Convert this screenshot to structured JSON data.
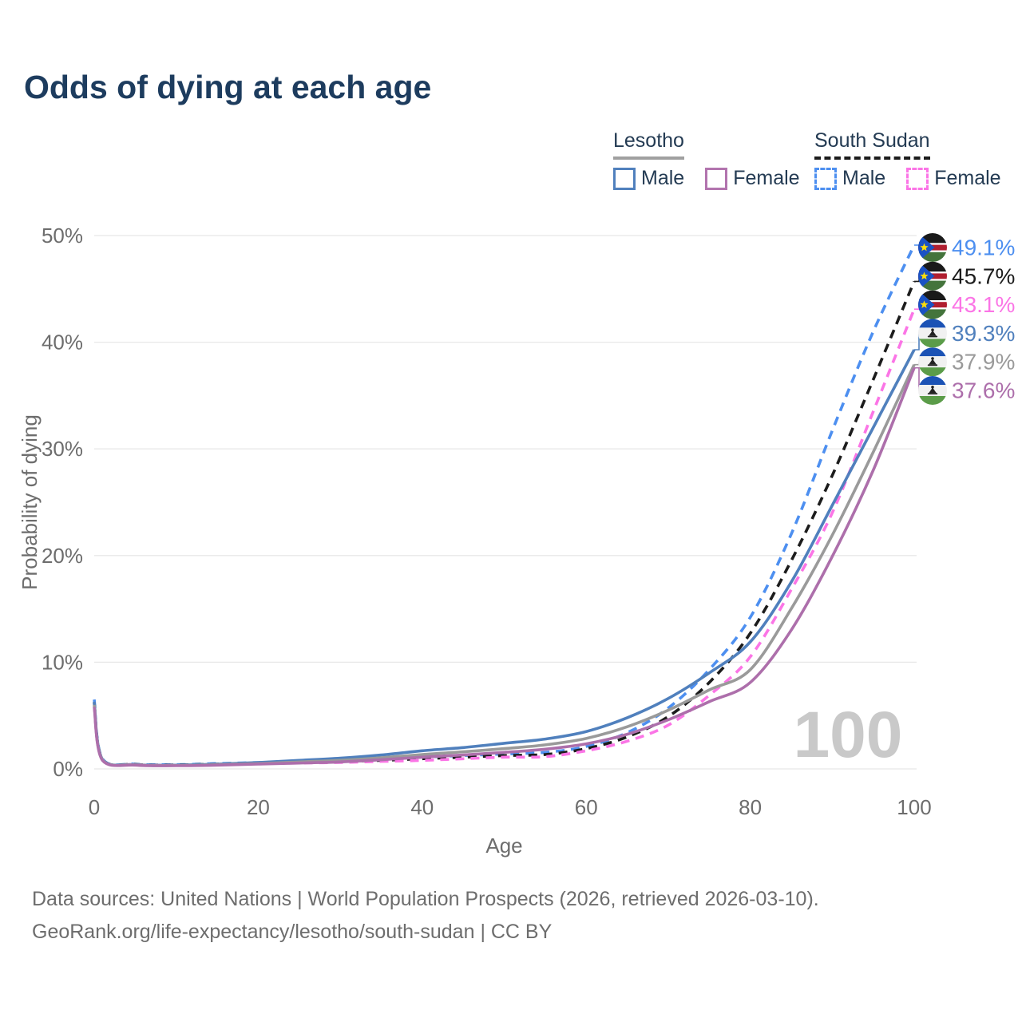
{
  "title": "Odds of dying at each age",
  "colors": {
    "title_text": "#1d3c5e",
    "legend_text": "#243b53",
    "axis_text": "#6d6d6d",
    "grid": "#e8e8e8",
    "watermark": "#c9c9c9",
    "footer_text": "#6d6d6d"
  },
  "legend": {
    "groups": [
      {
        "name": "Lesotho",
        "line_style": "solid",
        "underline_color": "#a0a0a0",
        "items": [
          {
            "label": "Male",
            "color": "#5080bd"
          },
          {
            "label": "Female",
            "color": "#b274ae"
          }
        ]
      },
      {
        "name": "South Sudan",
        "line_style": "dashed",
        "underline_color": "#1c1c1c",
        "items": [
          {
            "label": "Male",
            "color": "#4d8ff0"
          },
          {
            "label": "Female",
            "color": "#fb75e6"
          }
        ]
      }
    ]
  },
  "chart_data": {
    "type": "line",
    "title": "Odds of dying at each age",
    "xlabel": "Age",
    "ylabel": "Probability of dying",
    "xlim": [
      0,
      100
    ],
    "ylim": [
      0,
      50
    ],
    "xticks": [
      0,
      20,
      40,
      60,
      80,
      100
    ],
    "yticks": [
      {
        "v": 0,
        "label": "0%"
      },
      {
        "v": 10,
        "label": "10%"
      },
      {
        "v": 20,
        "label": "20%"
      },
      {
        "v": 30,
        "label": "30%"
      },
      {
        "v": 40,
        "label": "40%"
      },
      {
        "v": 50,
        "label": "50%"
      }
    ],
    "grid": "horizontal",
    "legend_position": "top-right",
    "watermark": "100",
    "x": [
      0,
      1,
      5,
      10,
      15,
      20,
      25,
      30,
      35,
      40,
      45,
      50,
      55,
      60,
      65,
      70,
      75,
      80,
      85,
      90,
      95,
      100
    ],
    "series": [
      {
        "name": "South Sudan Male",
        "country": "South Sudan",
        "sex": "Male",
        "flag": "south-sudan",
        "color": "#4d8ff0",
        "dash": true,
        "end_label": "49.1%",
        "values": [
          6.5,
          0.95,
          0.45,
          0.4,
          0.5,
          0.6,
          0.7,
          0.8,
          0.95,
          1.1,
          1.25,
          1.4,
          1.55,
          2.1,
          3.4,
          5.7,
          9.3,
          14.2,
          22.0,
          31.7,
          41.0,
          49.1
        ]
      },
      {
        "name": "South Sudan Both sexes",
        "country": "South Sudan",
        "sex": "Both",
        "flag": "south-sudan",
        "color": "#1c1c1c",
        "dash": true,
        "end_label": "45.7%",
        "values": [
          6.2,
          0.9,
          0.42,
          0.37,
          0.45,
          0.55,
          0.62,
          0.7,
          0.8,
          0.95,
          1.1,
          1.25,
          1.35,
          1.9,
          3.0,
          4.9,
          8.1,
          12.7,
          19.5,
          27.5,
          36.5,
          45.7
        ]
      },
      {
        "name": "South Sudan Female",
        "country": "South Sudan",
        "sex": "Female",
        "flag": "south-sudan",
        "color": "#fb75e6",
        "dash": true,
        "end_label": "43.1%",
        "values": [
          5.9,
          0.85,
          0.4,
          0.35,
          0.4,
          0.5,
          0.55,
          0.6,
          0.7,
          0.8,
          0.95,
          1.1,
          1.15,
          1.7,
          2.6,
          4.1,
          6.9,
          10.5,
          16.8,
          24.0,
          33.5,
          43.1
        ]
      },
      {
        "name": "Lesotho Male",
        "country": "Lesotho",
        "sex": "Male",
        "flag": "lesotho",
        "color": "#5080bd",
        "dash": false,
        "end_label": "39.3%",
        "values": [
          6.3,
          0.9,
          0.4,
          0.35,
          0.45,
          0.6,
          0.8,
          1.0,
          1.3,
          1.7,
          2.0,
          2.4,
          2.8,
          3.5,
          4.8,
          6.6,
          9.0,
          11.9,
          17.5,
          24.7,
          32.0,
          39.3
        ]
      },
      {
        "name": "Lesotho Both sexes",
        "country": "Lesotho",
        "sex": "Both",
        "flag": "lesotho",
        "color": "#9a9a9a",
        "dash": false,
        "end_label": "37.9%",
        "values": [
          6.0,
          0.85,
          0.38,
          0.32,
          0.4,
          0.5,
          0.65,
          0.8,
          1.05,
          1.35,
          1.6,
          1.9,
          2.25,
          2.85,
          3.95,
          5.5,
          7.4,
          9.3,
          15.0,
          21.9,
          29.7,
          37.9
        ]
      },
      {
        "name": "Lesotho Female",
        "country": "Lesotho",
        "sex": "Female",
        "flag": "lesotho",
        "color": "#ad6fab",
        "dash": false,
        "end_label": "37.6%",
        "values": [
          5.8,
          0.8,
          0.35,
          0.3,
          0.35,
          0.45,
          0.55,
          0.65,
          0.85,
          1.1,
          1.3,
          1.55,
          1.85,
          2.35,
          3.25,
          4.6,
          6.3,
          8.1,
          13.0,
          19.9,
          28.0,
          37.6
        ]
      }
    ]
  },
  "footer": {
    "line1": "Data sources: United Nations | World Population Prospects (2026, retrieved 2026-03-10).",
    "line2": "GeoRank.org/life-expectancy/lesotho/south-sudan | CC BY"
  }
}
